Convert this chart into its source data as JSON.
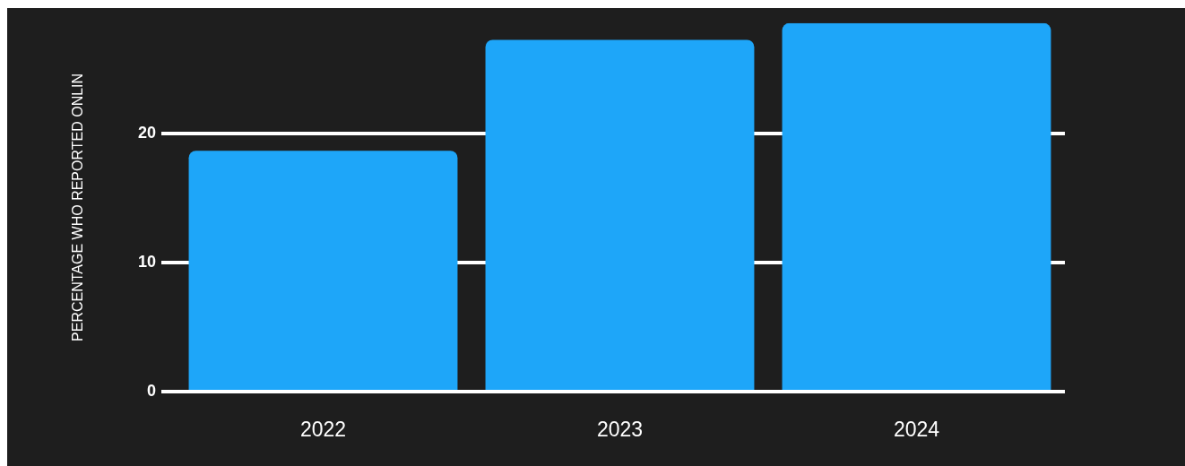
{
  "chart_data": {
    "type": "bar",
    "ylabel": "PERCENTAGE WHO REPORTED ONLIN",
    "categories": [
      "2022",
      "2023",
      "2024"
    ],
    "values": [
      18.7,
      27.3,
      28.6
    ],
    "color": "#1ea6f9",
    "ylim": [
      0,
      28.6
    ],
    "yticks": [
      0,
      10,
      20
    ],
    "grid": "y",
    "legend": false
  }
}
